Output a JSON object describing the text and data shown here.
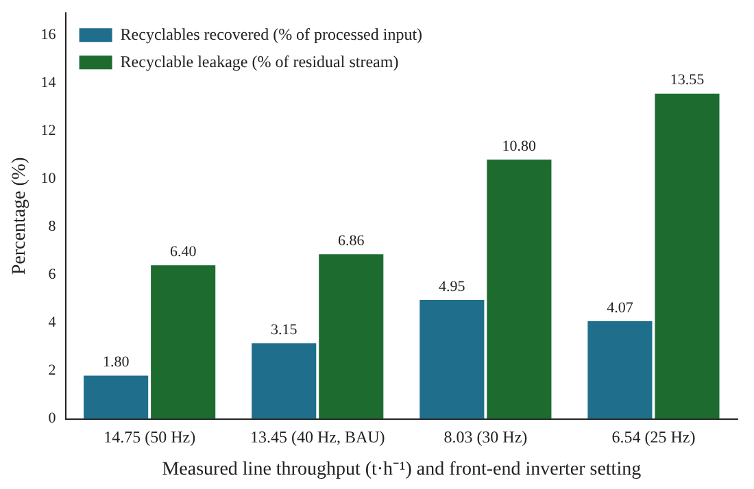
{
  "chart_data": {
    "type": "bar",
    "xlabel": "Measured line throughput (t·h⁻¹) and front-end inverter setting",
    "ylabel": "Percentage (%)",
    "categories": [
      "14.75 (50 Hz)",
      "13.45 (40 Hz, BAU)",
      "8.03 (30 Hz)",
      "6.54 (25 Hz)"
    ],
    "series": [
      {
        "name": "Recyclables recovered (% of processed input)",
        "color": "#1f6e8c",
        "values": [
          1.8,
          3.15,
          4.95,
          4.07
        ],
        "value_labels": [
          "1.80",
          "3.15",
          "4.95",
          "4.07"
        ]
      },
      {
        "name": "Recyclable leakage (% of residual stream)",
        "color": "#1e6b30",
        "values": [
          6.4,
          6.86,
          10.8,
          13.55
        ],
        "value_labels": [
          "6.40",
          "6.86",
          "10.80",
          "13.55"
        ]
      }
    ],
    "ylim": [
      0,
      16.9
    ],
    "yticks": [
      0,
      2,
      4,
      6,
      8,
      10,
      12,
      14,
      16
    ],
    "grid": false,
    "legend": "top left"
  }
}
